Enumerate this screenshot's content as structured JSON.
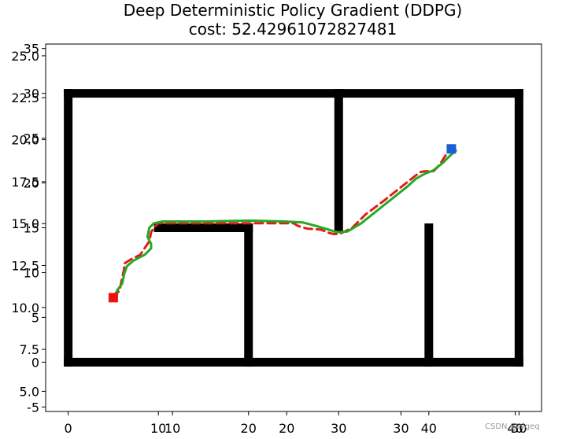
{
  "chart_data": {
    "type": "line",
    "title": "Deep Deterministic Policy Gradient (DDPG)",
    "subtitle": "cost: 52.42961072827481",
    "xlabel": "",
    "ylabel": "",
    "grid": false,
    "legend": "none",
    "axes": [
      {
        "name": "map",
        "xlim": [
          -2.5,
          52.5
        ],
        "ylim": [
          -5.5,
          35.5
        ],
        "xticks": [
          0,
          10,
          20,
          30,
          40,
          50
        ],
        "yticks": [
          -5,
          0,
          5,
          10,
          15,
          20,
          25,
          30,
          35
        ]
      },
      {
        "name": "scaled",
        "xlim": [
          -1.1,
          42.3
        ],
        "ylim": [
          3.8,
          25.7
        ],
        "xticks": [
          10,
          20,
          30,
          40
        ],
        "yticks": [
          5.0,
          7.5,
          10.0,
          12.5,
          15.0,
          17.5,
          20.0,
          22.5,
          25.0
        ]
      }
    ],
    "walls": {
      "color": "#000000",
      "segments": [
        {
          "x": [
            0,
            50
          ],
          "y": [
            0,
            0
          ]
        },
        {
          "x": [
            0,
            50
          ],
          "y": [
            30,
            30
          ]
        },
        {
          "x": [
            0,
            0
          ],
          "y": [
            0,
            30
          ]
        },
        {
          "x": [
            50,
            50
          ],
          "y": [
            0,
            30
          ]
        },
        {
          "x": [
            30,
            30
          ],
          "y": [
            15,
            30
          ]
        },
        {
          "x": [
            10,
            20
          ],
          "y": [
            15,
            15
          ]
        },
        {
          "x": [
            20,
            20
          ],
          "y": [
            0,
            15
          ]
        },
        {
          "x": [
            40,
            40
          ],
          "y": [
            0,
            15
          ]
        }
      ]
    },
    "series": [
      {
        "color": "#e41a1a",
        "dash": true,
        "x": [
          5,
          5.7,
          6,
          6.2,
          6.2,
          7,
          8,
          9,
          9.2,
          9.5,
          10,
          15,
          20,
          25,
          25.5,
          26.5,
          28,
          29,
          29.5,
          30,
          30.5,
          31.5,
          32,
          33,
          35,
          37.5,
          39,
          39.5,
          40,
          40.5,
          41,
          41.5,
          42,
          42.5
        ],
        "y": [
          7.2,
          8,
          9.5,
          10.4,
          11,
          11.5,
          12,
          13.5,
          14.5,
          15,
          15.5,
          15.5,
          15.5,
          15.5,
          15.2,
          14.9,
          14.8,
          14.4,
          14.3,
          14.3,
          14.5,
          15,
          15.5,
          16.5,
          18,
          20,
          21.2,
          21.3,
          21.3,
          21.3,
          21.8,
          22.5,
          23.3,
          23.8
        ]
      },
      {
        "color": "#22aa22",
        "dash": false,
        "x": [
          5,
          5.5,
          6,
          6.2,
          6.5,
          7.2,
          8.5,
          9.2,
          9.2,
          8.8,
          9,
          9.5,
          10.5,
          15,
          20,
          24,
          26,
          27.5,
          28.5,
          29.5,
          30,
          31,
          32.5,
          35,
          37.5,
          38.6,
          39.5,
          40,
          40.5,
          41.5,
          42.3,
          43
        ],
        "y": [
          7.2,
          8.1,
          8.8,
          9.8,
          10.7,
          11.3,
          12,
          12.7,
          13.2,
          14,
          15,
          15.5,
          15.7,
          15.7,
          15.8,
          15.7,
          15.6,
          15.2,
          14.9,
          14.6,
          14.5,
          14.6,
          15.5,
          17.5,
          19.5,
          20.5,
          21,
          21.2,
          21.4,
          22.2,
          23,
          23.6
        ]
      }
    ],
    "markers": [
      {
        "name": "start",
        "x": 5,
        "y": 7.2,
        "color": "#ee1111",
        "shape": "square"
      },
      {
        "name": "goal",
        "x": 42.5,
        "y": 23.8,
        "color": "#1a5fd6",
        "shape": "square"
      }
    ]
  },
  "watermark": "CSDN @nigeq"
}
